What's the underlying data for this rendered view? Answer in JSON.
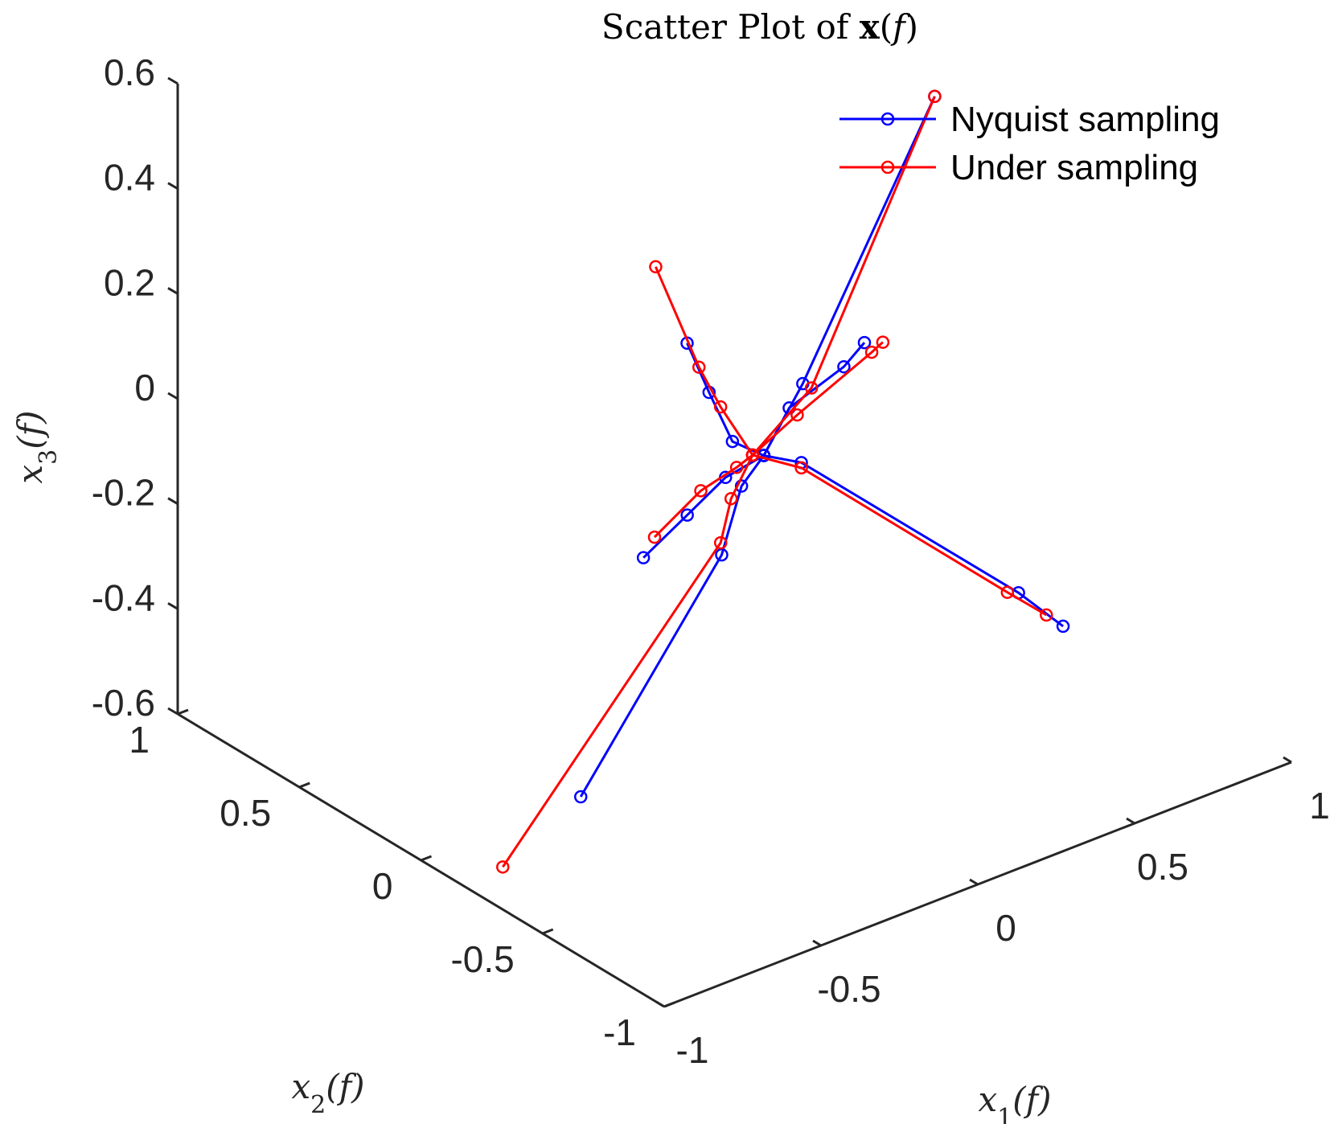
{
  "chart_data": {
    "type": "scatter",
    "title": "Scatter Plot of x(f)",
    "xlabel": "x1(f)",
    "ylabel": "x2(f)",
    "zlabel": "x3(f)",
    "xlim": [
      -1,
      1
    ],
    "ylim": [
      -1,
      1
    ],
    "zlim": [
      -0.6,
      0.6
    ],
    "x_ticks": [
      "-1",
      "-0.5",
      "0",
      "0.5",
      "1"
    ],
    "y_ticks": [
      "-1",
      "-0.5",
      "0",
      "0.5",
      "1"
    ],
    "z_ticks": [
      "-0.6",
      "-0.4",
      "-0.2",
      "0",
      "0.2",
      "0.4",
      "0.6"
    ],
    "grid": false,
    "legend_position": "top-right",
    "series": [
      {
        "name": "Nyquist sampling",
        "color": "#0000ff",
        "lines": [
          [
            [
              0.07,
              -0.03,
              -0.07
            ],
            [
              -0.03,
              -0.03,
              -0.02
            ],
            [
              -0.12,
              -0.05,
              0.1
            ],
            [
              -0.19,
              -0.05,
              0.21
            ]
          ],
          [
            [
              0.07,
              -0.03,
              -0.07
            ],
            [
              0.12,
              -0.07,
              0.02
            ],
            [
              0.24,
              -0.14,
              0.09
            ],
            [
              0.29,
              -0.16,
              0.13
            ]
          ],
          [
            [
              0.07,
              -0.03,
              -0.07
            ],
            [
              0.01,
              0.05,
              -0.12
            ],
            [
              -0.05,
              0.13,
              -0.2
            ],
            [
              -0.12,
              0.22,
              -0.29
            ]
          ],
          [
            [
              0.07,
              -0.03,
              -0.07
            ],
            [
              0.03,
              0.01,
              -0.13
            ],
            [
              -0.01,
              0.04,
              -0.26
            ],
            [
              -0.25,
              0.31,
              -0.74
            ]
          ],
          [
            [
              0.07,
              -0.03,
              -0.07
            ],
            [
              0.12,
              -0.12,
              -0.07
            ],
            [
              0.51,
              -0.51,
              -0.3
            ],
            [
              0.59,
              -0.59,
              -0.36
            ]
          ],
          [
            [
              0.07,
              -0.03,
              -0.07
            ],
            [
              0.14,
              -0.1,
              0.07
            ],
            [
              0.39,
              -0.32,
              0.62
            ]
          ]
        ]
      },
      {
        "name": "Under sampling",
        "color": "#ff0000",
        "lines": [
          [
            [
              0.05,
              -0.01,
              -0.07
            ],
            [
              -0.06,
              -0.02,
              0.05
            ],
            [
              -0.16,
              -0.06,
              0.16
            ],
            [
              -0.36,
              -0.14,
              0.42
            ]
          ],
          [
            [
              0.05,
              -0.01,
              -0.07
            ],
            [
              0.13,
              -0.09,
              0.01
            ],
            [
              0.29,
              -0.19,
              0.12
            ],
            [
              0.31,
              -0.21,
              0.14
            ]
          ],
          [
            [
              0.05,
              -0.01,
              -0.07
            ],
            [
              0.03,
              0.03,
              -0.1
            ],
            [
              -0.03,
              0.1,
              -0.15
            ],
            [
              -0.1,
              0.2,
              -0.25
            ]
          ],
          [
            [
              0.05,
              -0.01,
              -0.07
            ],
            [
              0.02,
              0.04,
              -0.16
            ],
            [
              0.01,
              0.07,
              -0.25
            ],
            [
              -0.39,
              0.45,
              -0.88
            ]
          ],
          [
            [
              0.05,
              -0.01,
              -0.07
            ],
            [
              0.12,
              -0.12,
              -0.08
            ],
            [
              0.49,
              -0.49,
              -0.3
            ],
            [
              0.56,
              -0.56,
              -0.34
            ]
          ],
          [
            [
              0.05,
              -0.01,
              -0.07
            ],
            [
              0.16,
              -0.11,
              0.06
            ],
            [
              0.39,
              -0.32,
              0.62
            ]
          ]
        ]
      }
    ]
  }
}
